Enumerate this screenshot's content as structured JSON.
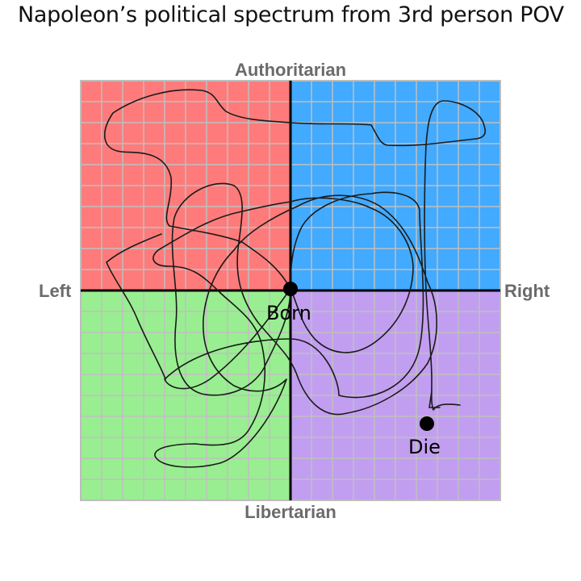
{
  "title": "Napoleon’s political spectrum from 3rd person POV",
  "axes": {
    "top": "Authoritarian",
    "bottom": "Libertarian",
    "left": "Left",
    "right": "Right"
  },
  "quadrants": {
    "authoritarian_left": "#ff7b7b",
    "authoritarian_right": "#42aaff",
    "libertarian_left": "#99ee91",
    "libertarian_right": "#c29ef0"
  },
  "points": {
    "born": "Born",
    "die": "Die"
  },
  "colors": {
    "grid_line": "#bfbfbf",
    "axis_line": "#000000",
    "path": "#1a1a1a"
  }
}
